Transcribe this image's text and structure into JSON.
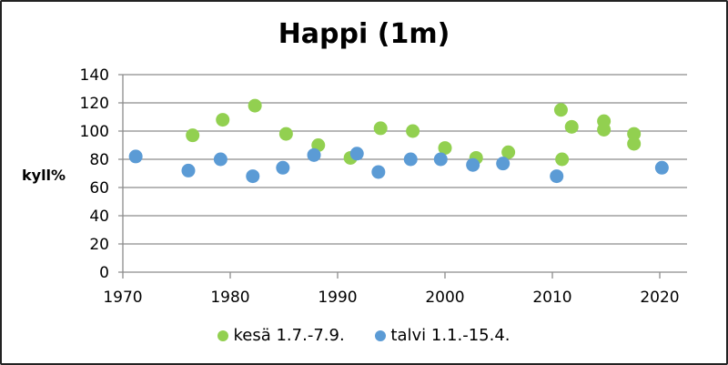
{
  "chart_data": {
    "type": "scatter",
    "title": "Happi (1m)",
    "xlabel": "",
    "ylabel": "kyll%",
    "xlim": [
      1970,
      2023
    ],
    "ylim": [
      0,
      140
    ],
    "x_ticks": [
      1970,
      1980,
      1990,
      2000,
      2010,
      2020
    ],
    "y_ticks": [
      0,
      20,
      40,
      60,
      80,
      100,
      120,
      140
    ],
    "grid": "horizontal",
    "legend_position": "bottom",
    "series": [
      {
        "name": "kesä 1.7.-7.9.",
        "color": "#92D050",
        "points": [
          [
            1976.5,
            97
          ],
          [
            1979.3,
            108
          ],
          [
            1982.3,
            118
          ],
          [
            1985.2,
            98
          ],
          [
            1988.2,
            90
          ],
          [
            1991.2,
            81
          ],
          [
            1994,
            102
          ],
          [
            1997,
            100
          ],
          [
            2000,
            88
          ],
          [
            2002.9,
            81
          ],
          [
            2005.9,
            85
          ],
          [
            2010.8,
            115
          ],
          [
            2010.9,
            80
          ],
          [
            2011.8,
            103
          ],
          [
            2014.8,
            101
          ],
          [
            2014.8,
            107
          ],
          [
            2017.6,
            98
          ],
          [
            2017.6,
            91
          ]
        ]
      },
      {
        "name": "talvi 1.1.-15.4.",
        "color": "#5B9BD5",
        "points": [
          [
            1971.2,
            82
          ],
          [
            1976.1,
            72
          ],
          [
            1979.1,
            80
          ],
          [
            1982.1,
            68
          ],
          [
            1984.9,
            74
          ],
          [
            1987.8,
            83
          ],
          [
            1991.8,
            84
          ],
          [
            1993.8,
            71
          ],
          [
            1996.8,
            80
          ],
          [
            1999.6,
            80
          ],
          [
            2002.6,
            76
          ],
          [
            2005.4,
            77
          ],
          [
            2010.4,
            68
          ],
          [
            2020.2,
            74
          ]
        ]
      }
    ]
  }
}
